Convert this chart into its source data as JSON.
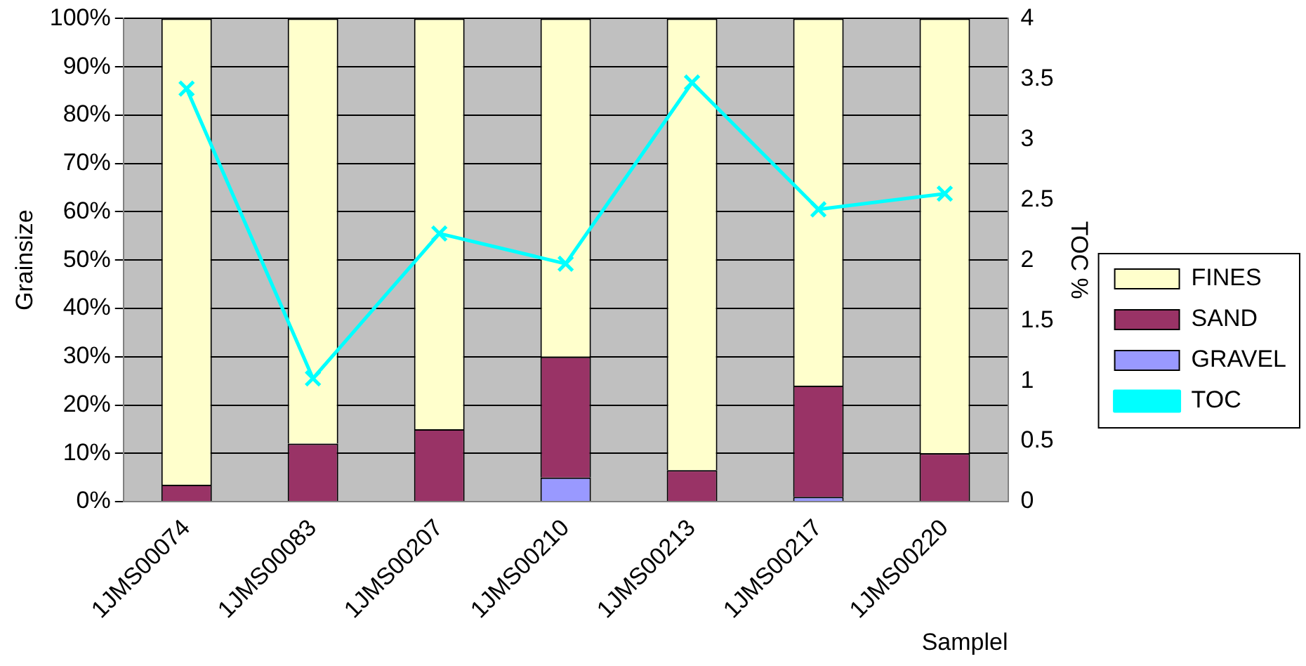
{
  "chart_data": {
    "type": "bar",
    "stacked": true,
    "categories": [
      "1JMS00074",
      "1JMS00083",
      "1JMS00207",
      "1JMS00210",
      "1JMS00213",
      "1JMS00217",
      "1JMS00220"
    ],
    "series": [
      {
        "name": "GRAVEL",
        "color": "#9999ff",
        "values": [
          0,
          0,
          0,
          5,
          0,
          1,
          0
        ]
      },
      {
        "name": "SAND",
        "color": "#993366",
        "values": [
          3.5,
          12,
          15,
          25,
          6.5,
          23,
          10
        ]
      },
      {
        "name": "FINES",
        "color": "#ffffcc",
        "values": [
          96.5,
          88,
          85,
          70,
          93.5,
          76,
          90
        ]
      },
      {
        "name": "TOC",
        "type": "line",
        "axis": "y2",
        "color": "#00ffff",
        "values": [
          3.42,
          1.02,
          2.22,
          1.97,
          3.47,
          2.42,
          2.55
        ]
      }
    ],
    "ylim": [
      0,
      100
    ],
    "yticks": [
      {
        "value": 0,
        "label": "0%"
      },
      {
        "value": 10,
        "label": "10%"
      },
      {
        "value": 20,
        "label": "20%"
      },
      {
        "value": 30,
        "label": "30%"
      },
      {
        "value": 40,
        "label": "40%"
      },
      {
        "value": 50,
        "label": "50%"
      },
      {
        "value": 60,
        "label": "60%"
      },
      {
        "value": 70,
        "label": "70%"
      },
      {
        "value": 80,
        "label": "80%"
      },
      {
        "value": 90,
        "label": "90%"
      },
      {
        "value": 100,
        "label": "100%"
      }
    ],
    "y2lim": [
      0,
      4
    ],
    "y2ticks": [
      0,
      0.5,
      1,
      1.5,
      2,
      2.5,
      3,
      3.5,
      4
    ],
    "ylabel": "Grainsize",
    "y2label": "TOC %",
    "xlabel": "Samplel",
    "grid": "y",
    "legend": "right",
    "marker": "cross"
  }
}
